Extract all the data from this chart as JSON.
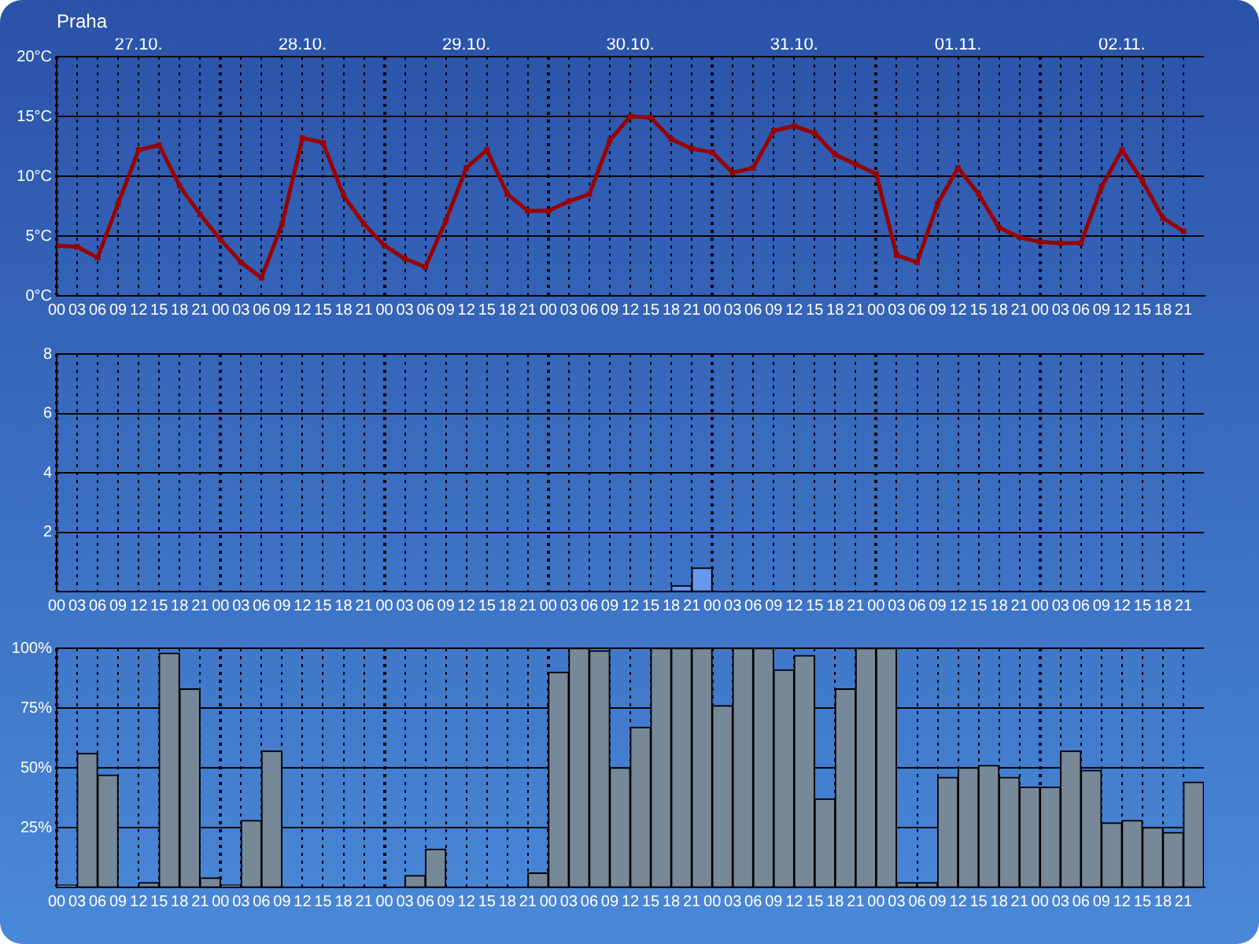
{
  "chart_data": [
    {
      "type": "line",
      "title": "Praha",
      "color": "#990000",
      "marker": "square",
      "grid": true,
      "x": [
        "--10-27T00:00",
        "--10-27T03:00",
        "--10-27T06:00",
        "--10-27T09:00",
        "--10-27T12:00",
        "--10-27T15:00",
        "--10-27T18:00",
        "--10-27T21:00",
        "--10-28T00:00",
        "--10-28T03:00",
        "--10-28T06:00",
        "--10-28T09:00",
        "--10-28T12:00",
        "--10-28T15:00",
        "--10-28T18:00",
        "--10-28T21:00",
        "--10-29T00:00",
        "--10-29T03:00",
        "--10-29T06:00",
        "--10-29T09:00",
        "--10-29T12:00",
        "--10-29T15:00",
        "--10-29T18:00",
        "--10-29T21:00",
        "--10-30T00:00",
        "--10-30T03:00",
        "--10-30T06:00",
        "--10-30T09:00",
        "--10-30T12:00",
        "--10-30T15:00",
        "--10-30T18:00",
        "--10-30T21:00",
        "--10-31T00:00",
        "--10-31T03:00",
        "--10-31T06:00",
        "--10-31T09:00",
        "--10-31T12:00",
        "--10-31T15:00",
        "--10-31T18:00",
        "--10-31T21:00",
        "--11-01T00:00",
        "--11-01T03:00",
        "--11-01T06:00",
        "--11-01T09:00",
        "--11-01T12:00",
        "--11-01T15:00",
        "--11-01T18:00",
        "--11-01T21:00",
        "--11-02T00:00",
        "--11-02T03:00",
        "--11-02T06:00",
        "--11-02T09:00",
        "--11-02T12:00",
        "--11-02T15:00",
        "--11-02T18:00",
        "--11-02T21:00"
      ],
      "values": [
        4.2,
        4.1,
        3.2,
        7.7,
        12.2,
        12.6,
        9.2,
        6.8,
        4.7,
        2.8,
        1.5,
        6.0,
        13.2,
        12.8,
        8.4,
        6.0,
        4.2,
        3.1,
        2.4,
        6.3,
        10.7,
        12.2,
        8.5,
        7.1,
        7.1,
        7.9,
        8.5,
        13.0,
        15.0,
        14.9,
        13.1,
        12.3,
        12.0,
        10.3,
        10.7,
        13.8,
        14.2,
        13.6,
        11.8,
        11.0,
        10.2,
        3.4,
        2.8,
        7.7,
        10.7,
        8.5,
        5.7,
        4.9,
        4.5,
        4.4,
        4.4,
        9.1,
        12.2,
        9.6,
        6.5,
        5.4
      ],
      "xlim": [
        "--10-27T00:00",
        "--11-03T00:00"
      ],
      "xticks": [
        {
          "value": "--10-27T00:00",
          "label": "00"
        },
        {
          "value": "--10-27T03:00",
          "label": "03"
        },
        {
          "value": "--10-27T06:00",
          "label": "06"
        },
        {
          "value": "--10-27T09:00",
          "label": "09"
        },
        {
          "value": "--10-27T12:00",
          "label": "12"
        },
        {
          "value": "--10-27T15:00",
          "label": "15"
        },
        {
          "value": "--10-27T18:00",
          "label": "18"
        },
        {
          "value": "--10-27T21:00",
          "label": "21"
        },
        {
          "value": "--10-28T00:00",
          "label": "00"
        },
        {
          "value": "--10-28T03:00",
          "label": "03"
        },
        {
          "value": "--10-28T06:00",
          "label": "06"
        },
        {
          "value": "--10-28T09:00",
          "label": "09"
        },
        {
          "value": "--10-28T12:00",
          "label": "12"
        },
        {
          "value": "--10-28T15:00",
          "label": "15"
        },
        {
          "value": "--10-28T18:00",
          "label": "18"
        },
        {
          "value": "--10-28T21:00",
          "label": "21"
        },
        {
          "value": "--10-29T00:00",
          "label": "00"
        },
        {
          "value": "--10-29T03:00",
          "label": "03"
        },
        {
          "value": "--10-29T06:00",
          "label": "06"
        },
        {
          "value": "--10-29T09:00",
          "label": "09"
        },
        {
          "value": "--10-29T12:00",
          "label": "12"
        },
        {
          "value": "--10-29T15:00",
          "label": "15"
        },
        {
          "value": "--10-29T18:00",
          "label": "18"
        },
        {
          "value": "--10-29T21:00",
          "label": "21"
        },
        {
          "value": "--10-30T00:00",
          "label": "00"
        },
        {
          "value": "--10-30T03:00",
          "label": "03"
        },
        {
          "value": "--10-30T06:00",
          "label": "06"
        },
        {
          "value": "--10-30T09:00",
          "label": "09"
        },
        {
          "value": "--10-30T12:00",
          "label": "12"
        },
        {
          "value": "--10-30T15:00",
          "label": "15"
        },
        {
          "value": "--10-30T18:00",
          "label": "18"
        },
        {
          "value": "--10-30T21:00",
          "label": "21"
        },
        {
          "value": "--10-31T00:00",
          "label": "00"
        },
        {
          "value": "--10-31T03:00",
          "label": "03"
        },
        {
          "value": "--10-31T06:00",
          "label": "06"
        },
        {
          "value": "--10-31T09:00",
          "label": "09"
        },
        {
          "value": "--10-31T12:00",
          "label": "12"
        },
        {
          "value": "--10-31T15:00",
          "label": "15"
        },
        {
          "value": "--10-31T18:00",
          "label": "18"
        },
        {
          "value": "--10-31T21:00",
          "label": "21"
        },
        {
          "value": "--11-01T00:00",
          "label": "00"
        },
        {
          "value": "--11-01T03:00",
          "label": "03"
        },
        {
          "value": "--11-01T06:00",
          "label": "06"
        },
        {
          "value": "--11-01T09:00",
          "label": "09"
        },
        {
          "value": "--11-01T12:00",
          "label": "12"
        },
        {
          "value": "--11-01T15:00",
          "label": "15"
        },
        {
          "value": "--11-01T18:00",
          "label": "18"
        },
        {
          "value": "--11-01T21:00",
          "label": "21"
        },
        {
          "value": "--11-02T00:00",
          "label": "00"
        },
        {
          "value": "--11-02T03:00",
          "label": "03"
        },
        {
          "value": "--11-02T06:00",
          "label": "06"
        },
        {
          "value": "--11-02T09:00",
          "label": "09"
        },
        {
          "value": "--11-02T12:00",
          "label": "12"
        },
        {
          "value": "--11-02T15:00",
          "label": "15"
        },
        {
          "value": "--11-02T18:00",
          "label": "18"
        },
        {
          "value": "--11-02T21:00",
          "label": "21"
        }
      ],
      "x2lim": [
        "--10-27T00:00",
        "--11-03T00:00"
      ],
      "x2ticks": [
        {
          "value": "--10-27T12:00",
          "label": "27.10."
        },
        {
          "value": "--10-28T12:00",
          "label": "28.10."
        },
        {
          "value": "--10-29T12:00",
          "label": "29.10."
        },
        {
          "value": "--10-30T12:00",
          "label": "30.10."
        },
        {
          "value": "--10-31T12:00",
          "label": "31.10."
        },
        {
          "value": "--11-01T12:00",
          "label": "01.11."
        },
        {
          "value": "--11-02T12:00",
          "label": "02.11."
        }
      ],
      "ylim": [
        0,
        20
      ],
      "yticks": [
        {
          "value": 0,
          "label": "0°C"
        },
        {
          "value": 5,
          "label": "5°C"
        },
        {
          "value": 10,
          "label": "10°C"
        },
        {
          "value": 15,
          "label": "15°C"
        },
        {
          "value": 20,
          "label": "20°C"
        }
      ]
    },
    {
      "type": "bar",
      "color": "#6699ee",
      "grid": true,
      "x": [
        "--10-30T19:30",
        "--10-30T22:30"
      ],
      "values": [
        0.2,
        0.8
      ],
      "xlim": [
        "--10-27T00:00",
        "--11-03T00:00"
      ],
      "xticks": [
        {
          "value": "--10-27T00:00",
          "label": "00"
        },
        {
          "value": "--10-27T03:00",
          "label": "03"
        },
        {
          "value": "--10-27T06:00",
          "label": "06"
        },
        {
          "value": "--10-27T09:00",
          "label": "09"
        },
        {
          "value": "--10-27T12:00",
          "label": "12"
        },
        {
          "value": "--10-27T15:00",
          "label": "15"
        },
        {
          "value": "--10-27T18:00",
          "label": "18"
        },
        {
          "value": "--10-27T21:00",
          "label": "21"
        },
        {
          "value": "--10-28T00:00",
          "label": "00"
        },
        {
          "value": "--10-28T03:00",
          "label": "03"
        },
        {
          "value": "--10-28T06:00",
          "label": "06"
        },
        {
          "value": "--10-28T09:00",
          "label": "09"
        },
        {
          "value": "--10-28T12:00",
          "label": "12"
        },
        {
          "value": "--10-28T15:00",
          "label": "15"
        },
        {
          "value": "--10-28T18:00",
          "label": "18"
        },
        {
          "value": "--10-28T21:00",
          "label": "21"
        },
        {
          "value": "--10-29T00:00",
          "label": "00"
        },
        {
          "value": "--10-29T03:00",
          "label": "03"
        },
        {
          "value": "--10-29T06:00",
          "label": "06"
        },
        {
          "value": "--10-29T09:00",
          "label": "09"
        },
        {
          "value": "--10-29T12:00",
          "label": "12"
        },
        {
          "value": "--10-29T15:00",
          "label": "15"
        },
        {
          "value": "--10-29T18:00",
          "label": "18"
        },
        {
          "value": "--10-29T21:00",
          "label": "21"
        },
        {
          "value": "--10-30T00:00",
          "label": "00"
        },
        {
          "value": "--10-30T03:00",
          "label": "03"
        },
        {
          "value": "--10-30T06:00",
          "label": "06"
        },
        {
          "value": "--10-30T09:00",
          "label": "09"
        },
        {
          "value": "--10-30T12:00",
          "label": "12"
        },
        {
          "value": "--10-30T15:00",
          "label": "15"
        },
        {
          "value": "--10-30T18:00",
          "label": "18"
        },
        {
          "value": "--10-30T21:00",
          "label": "21"
        },
        {
          "value": "--10-31T00:00",
          "label": "00"
        },
        {
          "value": "--10-31T03:00",
          "label": "03"
        },
        {
          "value": "--10-31T06:00",
          "label": "06"
        },
        {
          "value": "--10-31T09:00",
          "label": "09"
        },
        {
          "value": "--10-31T12:00",
          "label": "12"
        },
        {
          "value": "--10-31T15:00",
          "label": "15"
        },
        {
          "value": "--10-31T18:00",
          "label": "18"
        },
        {
          "value": "--10-31T21:00",
          "label": "21"
        },
        {
          "value": "--11-01T00:00",
          "label": "00"
        },
        {
          "value": "--11-01T03:00",
          "label": "03"
        },
        {
          "value": "--11-01T06:00",
          "label": "06"
        },
        {
          "value": "--11-01T09:00",
          "label": "09"
        },
        {
          "value": "--11-01T12:00",
          "label": "12"
        },
        {
          "value": "--11-01T15:00",
          "label": "15"
        },
        {
          "value": "--11-01T18:00",
          "label": "18"
        },
        {
          "value": "--11-01T21:00",
          "label": "21"
        },
        {
          "value": "--11-02T00:00",
          "label": "00"
        },
        {
          "value": "--11-02T03:00",
          "label": "03"
        },
        {
          "value": "--11-02T06:00",
          "label": "06"
        },
        {
          "value": "--11-02T09:00",
          "label": "09"
        },
        {
          "value": "--11-02T12:00",
          "label": "12"
        },
        {
          "value": "--11-02T15:00",
          "label": "15"
        },
        {
          "value": "--11-02T18:00",
          "label": "18"
        },
        {
          "value": "--11-02T21:00",
          "label": "21"
        }
      ],
      "ylim": [
        0,
        8
      ],
      "yticks": [
        2,
        4,
        6,
        8
      ]
    },
    {
      "type": "bar",
      "color": "#778899",
      "grid": true,
      "x": [
        "--10-27T01:30",
        "--10-27T04:30",
        "--10-27T07:30",
        "--10-27T10:30",
        "--10-27T13:30",
        "--10-27T16:30",
        "--10-27T19:30",
        "--10-27T22:30",
        "--10-28T01:30",
        "--10-28T04:30",
        "--10-28T07:30",
        "--10-28T10:30",
        "--10-28T13:30",
        "--10-28T16:30",
        "--10-28T19:30",
        "--10-28T22:30",
        "--10-29T01:30",
        "--10-29T04:30",
        "--10-29T07:30",
        "--10-29T10:30",
        "--10-29T13:30",
        "--10-29T16:30",
        "--10-29T19:30",
        "--10-29T22:30",
        "--10-30T01:30",
        "--10-30T04:30",
        "--10-30T07:30",
        "--10-30T10:30",
        "--10-30T13:30",
        "--10-30T16:30",
        "--10-30T19:30",
        "--10-30T22:30",
        "--10-31T01:30",
        "--10-31T04:30",
        "--10-31T07:30",
        "--10-31T10:30",
        "--10-31T13:30",
        "--10-31T16:30",
        "--10-31T19:30",
        "--10-31T22:30",
        "--11-01T01:30",
        "--11-01T04:30",
        "--11-01T07:30",
        "--11-01T10:30",
        "--11-01T13:30",
        "--11-01T16:30",
        "--11-01T19:30",
        "--11-01T22:30",
        "--11-02T01:30",
        "--11-02T04:30",
        "--11-02T07:30",
        "--11-02T10:30",
        "--11-02T13:30",
        "--11-02T16:30",
        "--11-02T19:30",
        "--11-02T22:30"
      ],
      "values": [
        1,
        56,
        47,
        0,
        2,
        98,
        83,
        4,
        1,
        28,
        57,
        0,
        0,
        0,
        0,
        0,
        0,
        5,
        16,
        0,
        0,
        0,
        0,
        6,
        90,
        100,
        99,
        50,
        67,
        100,
        100,
        100,
        76,
        100,
        100,
        91,
        97,
        37,
        83,
        100,
        100,
        2,
        2,
        46,
        50,
        51,
        46,
        42,
        42,
        57,
        49,
        27,
        28,
        25,
        23,
        44
      ],
      "xlim": [
        "--10-27T00:00",
        "--11-03T00:00"
      ],
      "xticks": [
        {
          "value": "--10-27T00:00",
          "label": "00"
        },
        {
          "value": "--10-27T03:00",
          "label": "03"
        },
        {
          "value": "--10-27T06:00",
          "label": "06"
        },
        {
          "value": "--10-27T09:00",
          "label": "09"
        },
        {
          "value": "--10-27T12:00",
          "label": "12"
        },
        {
          "value": "--10-27T15:00",
          "label": "15"
        },
        {
          "value": "--10-27T18:00",
          "label": "18"
        },
        {
          "value": "--10-27T21:00",
          "label": "21"
        },
        {
          "value": "--10-28T00:00",
          "label": "00"
        },
        {
          "value": "--10-28T03:00",
          "label": "03"
        },
        {
          "value": "--10-28T06:00",
          "label": "06"
        },
        {
          "value": "--10-28T09:00",
          "label": "09"
        },
        {
          "value": "--10-28T12:00",
          "label": "12"
        },
        {
          "value": "--10-28T15:00",
          "label": "15"
        },
        {
          "value": "--10-28T18:00",
          "label": "18"
        },
        {
          "value": "--10-28T21:00",
          "label": "21"
        },
        {
          "value": "--10-29T00:00",
          "label": "00"
        },
        {
          "value": "--10-29T03:00",
          "label": "03"
        },
        {
          "value": "--10-29T06:00",
          "label": "06"
        },
        {
          "value": "--10-29T09:00",
          "label": "09"
        },
        {
          "value": "--10-29T12:00",
          "label": "12"
        },
        {
          "value": "--10-29T15:00",
          "label": "15"
        },
        {
          "value": "--10-29T18:00",
          "label": "18"
        },
        {
          "value": "--10-29T21:00",
          "label": "21"
        },
        {
          "value": "--10-30T00:00",
          "label": "00"
        },
        {
          "value": "--10-30T03:00",
          "label": "03"
        },
        {
          "value": "--10-30T06:00",
          "label": "06"
        },
        {
          "value": "--10-30T09:00",
          "label": "09"
        },
        {
          "value": "--10-30T12:00",
          "label": "12"
        },
        {
          "value": "--10-30T15:00",
          "label": "15"
        },
        {
          "value": "--10-30T18:00",
          "label": "18"
        },
        {
          "value": "--10-30T21:00",
          "label": "21"
        },
        {
          "value": "--10-31T00:00",
          "label": "00"
        },
        {
          "value": "--10-31T03:00",
          "label": "03"
        },
        {
          "value": "--10-31T06:00",
          "label": "06"
        },
        {
          "value": "--10-31T09:00",
          "label": "09"
        },
        {
          "value": "--10-31T12:00",
          "label": "12"
        },
        {
          "value": "--10-31T15:00",
          "label": "15"
        },
        {
          "value": "--10-31T18:00",
          "label": "18"
        },
        {
          "value": "--10-31T21:00",
          "label": "21"
        },
        {
          "value": "--11-01T00:00",
          "label": "00"
        },
        {
          "value": "--11-01T03:00",
          "label": "03"
        },
        {
          "value": "--11-01T06:00",
          "label": "06"
        },
        {
          "value": "--11-01T09:00",
          "label": "09"
        },
        {
          "value": "--11-01T12:00",
          "label": "12"
        },
        {
          "value": "--11-01T15:00",
          "label": "15"
        },
        {
          "value": "--11-01T18:00",
          "label": "18"
        },
        {
          "value": "--11-01T21:00",
          "label": "21"
        },
        {
          "value": "--11-02T00:00",
          "label": "00"
        },
        {
          "value": "--11-02T03:00",
          "label": "03"
        },
        {
          "value": "--11-02T06:00",
          "label": "06"
        },
        {
          "value": "--11-02T09:00",
          "label": "09"
        },
        {
          "value": "--11-02T12:00",
          "label": "12"
        },
        {
          "value": "--11-02T15:00",
          "label": "15"
        },
        {
          "value": "--11-02T18:00",
          "label": "18"
        },
        {
          "value": "--11-02T21:00",
          "label": "21"
        }
      ],
      "ylim": [
        0,
        100
      ],
      "yticks": [
        {
          "value": 25,
          "label": "25%"
        },
        {
          "value": 50,
          "label": "50%"
        },
        {
          "value": 75,
          "label": "75%"
        },
        {
          "value": 100,
          "label": "100%"
        }
      ]
    }
  ]
}
